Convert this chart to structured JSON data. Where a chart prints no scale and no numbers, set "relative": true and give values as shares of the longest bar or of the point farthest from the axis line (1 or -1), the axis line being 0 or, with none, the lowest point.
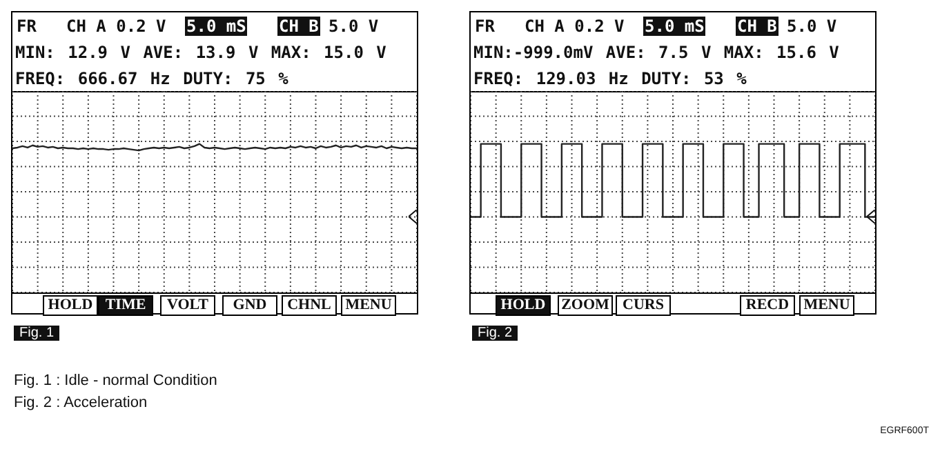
{
  "chart_data": [
    {
      "type": "line",
      "title": "Fig. 1",
      "relative": true,
      "grid": true,
      "tick_labels": false,
      "color": "#222222",
      "annotations": [
        "FR",
        "CH A 0.2 V",
        "5.0 mS",
        "CH B",
        "5.0 V",
        "MIN: 12.9 V AVE: 13.9 V MAX: 15.0 V",
        "FREQ: 666.67 Hz DUTY: 75 %",
        "HOLD",
        "TIME",
        "VOLT",
        "GND",
        "CHNL",
        "MENU"
      ],
      "categories": [
        null,
        null,
        null,
        null,
        null,
        null,
        null,
        null,
        null,
        null,
        null,
        null,
        null,
        null,
        null,
        null,
        null,
        null,
        null,
        null,
        null,
        null,
        null,
        null,
        null,
        null,
        null,
        null,
        null,
        null,
        null,
        null,
        null,
        null,
        null,
        null,
        null,
        null,
        null,
        null,
        null,
        null,
        null,
        null,
        null,
        null,
        null,
        null,
        null,
        null,
        null,
        null,
        null,
        null,
        null,
        null,
        null,
        null,
        null,
        null,
        null,
        null,
        null,
        null,
        null,
        null,
        null,
        null,
        null,
        null,
        null,
        null,
        null,
        null,
        null,
        null,
        null,
        null,
        null,
        null,
        null
      ],
      "values": [
        0.94,
        0.95,
        0.97,
        0.95,
        0.98,
        0.96,
        0.97,
        0.95,
        0.96,
        0.94,
        0.95,
        0.94,
        0.94,
        0.93,
        0.94,
        0.93,
        0.94,
        0.93,
        0.93,
        0.92,
        0.93,
        0.93,
        0.94,
        0.93,
        0.92,
        0.91,
        0.93,
        0.94,
        0.95,
        0.94,
        0.95,
        0.94,
        0.95,
        0.96,
        0.94,
        0.95,
        0.97,
        1.0,
        0.95,
        0.94,
        0.95,
        0.94,
        0.93,
        0.94,
        0.95,
        0.94,
        0.93,
        0.94,
        0.95,
        0.94,
        0.93,
        0.95,
        0.94,
        0.95,
        0.94,
        0.96,
        0.95,
        0.97,
        0.95,
        0.96,
        0.94,
        0.97,
        0.95,
        0.96,
        0.98,
        0.95,
        0.97,
        0.96,
        0.98,
        0.95,
        0.97,
        0.96,
        0.95,
        0.97,
        0.94,
        0.96,
        0.95,
        0.94,
        0.95,
        0.94,
        0.94
      ]
    },
    {
      "type": "step",
      "title": "Fig. 2",
      "relative": true,
      "grid": true,
      "tick_labels": false,
      "color": "#222222",
      "annotations": [
        "FR",
        "CH A 0.2 V",
        "5.0 mS",
        "CH B",
        "5.0 V",
        "MIN:-999.0mV AVE: 7.5 V MAX: 15.6 V",
        "FREQ: 129.03 Hz DUTY: 53 %",
        "HOLD",
        "ZOOM",
        "CURS",
        "RECD",
        "MENU"
      ],
      "categories": [
        null,
        null,
        null,
        null,
        null,
        null,
        null,
        null,
        null,
        null,
        null,
        null,
        null,
        null,
        null,
        null,
        null,
        null,
        null,
        null,
        null,
        null,
        null,
        null,
        null,
        null,
        null,
        null,
        null,
        null,
        null,
        null,
        null,
        null,
        null,
        null,
        null,
        null,
        null,
        null,
        null,
        null,
        null,
        null,
        null,
        null,
        null,
        null,
        null,
        null,
        null,
        null,
        null,
        null,
        null,
        null,
        null,
        null,
        null,
        null,
        null,
        null,
        null,
        null,
        null,
        null,
        null,
        null,
        null,
        null,
        null,
        null,
        null,
        null,
        null,
        null,
        null,
        null,
        null,
        null,
        null
      ],
      "values": [
        0,
        0,
        1,
        1,
        1,
        1,
        0,
        0,
        0,
        0,
        1,
        1,
        1,
        1,
        0,
        0,
        0,
        0,
        1,
        1,
        1,
        1,
        0,
        0,
        0,
        0,
        1,
        1,
        1,
        1,
        0,
        0,
        0,
        0,
        1,
        1,
        1,
        1,
        0,
        0,
        0,
        0,
        1,
        1,
        1,
        1,
        0,
        0,
        0,
        0,
        1,
        1,
        1,
        1,
        0,
        0,
        0,
        1,
        1,
        1,
        1,
        1,
        0,
        0,
        0,
        1,
        1,
        1,
        1,
        0,
        0,
        0,
        0,
        1,
        1,
        1,
        1,
        1,
        0,
        0,
        0
      ]
    },
    {
      "type": "other",
      "annotations": [
        "Fig. 1 : Idle - normal Condition",
        "Fig. 2 : Acceleration",
        "EGRF600T"
      ]
    }
  ]
}
